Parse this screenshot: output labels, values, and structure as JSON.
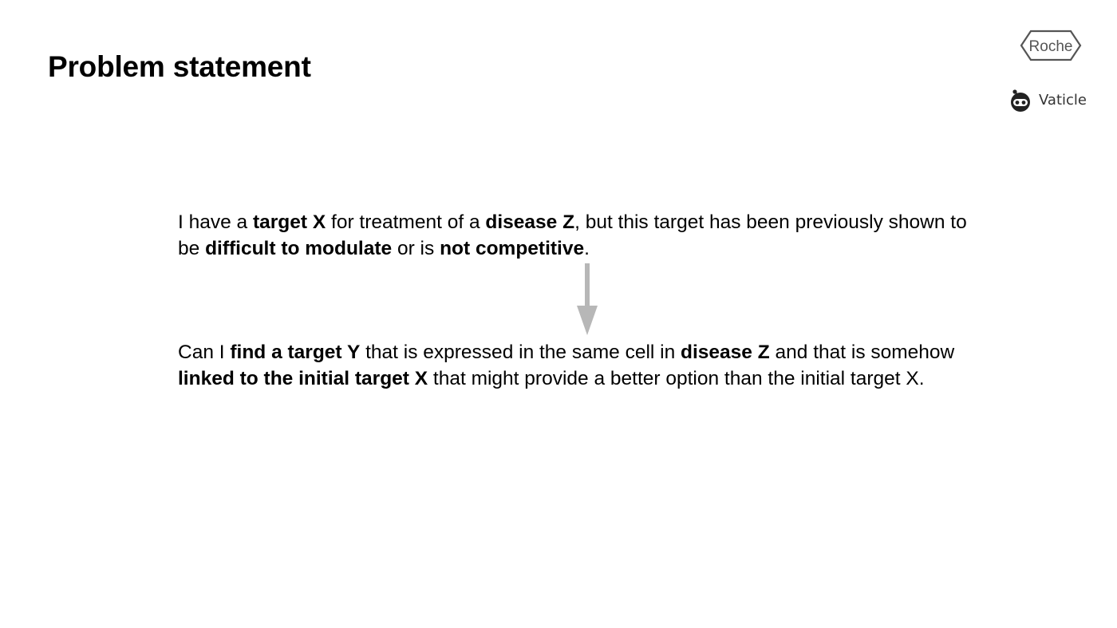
{
  "slide": {
    "title": "Problem statement"
  },
  "logos": {
    "roche": "Roche",
    "vaticle": "Vaticle"
  },
  "paragraph_1": {
    "s1": "I have a ",
    "b1": "target X",
    "s2": " for treatment of a ",
    "b2": "disease Z",
    "s3": ", but this target has been previously shown to be ",
    "b3": "difficult to modulate",
    "s4": " or is ",
    "b4": "not competitive",
    "s5": "."
  },
  "paragraph_2": {
    "s1": "Can I ",
    "b1": "find a target Y",
    "s2": " that is expressed in the same cell in ",
    "b2": "disease Z",
    "s3": " and that is somehow ",
    "b3": "linked to the initial target X",
    "s4": " that might provide a better option than the initial target X."
  },
  "icons": {
    "arrow": "arrow-down-icon",
    "vaticle": "vaticle-robot-icon",
    "roche": "roche-hexagon-logo"
  },
  "colors": {
    "text": "#000000",
    "arrow": "#b7b7b7",
    "logo_gray": "#555555"
  }
}
